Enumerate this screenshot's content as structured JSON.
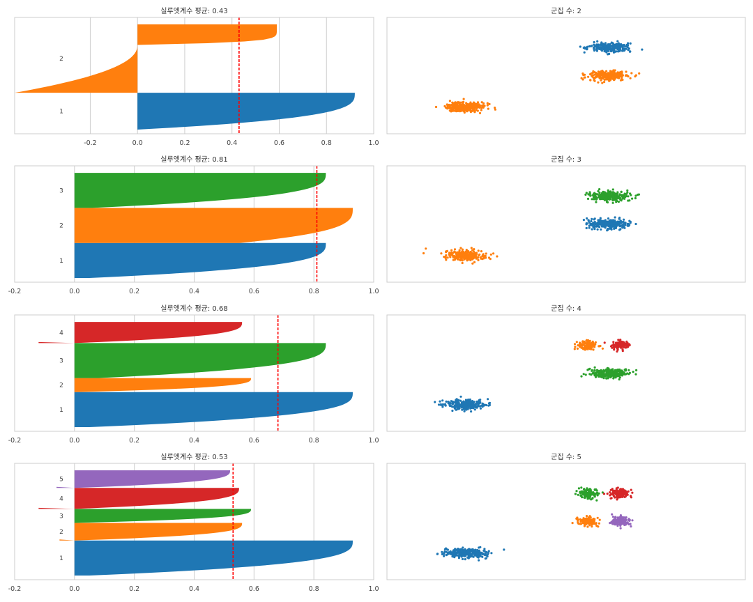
{
  "colors": {
    "cluster": [
      "#1f77b4",
      "#ff7f0e",
      "#2ca02c",
      "#d62728",
      "#9467bd"
    ],
    "mean_line": "#ff0000",
    "grid": "#cccccc",
    "frame": "#cccccc"
  },
  "chart_data": [
    {
      "type": "area",
      "panel": "silhouette",
      "title": "실루엣계수 평균:  0.43",
      "mean": 0.43,
      "xlim": [
        -0.52,
        1.0
      ],
      "xticks": [
        "-0.2",
        "0.0",
        "0.2",
        "0.4",
        "0.6",
        "0.8",
        "1.0"
      ],
      "xtick_values": [
        -0.2,
        0.0,
        0.2,
        0.4,
        0.6,
        0.8,
        1.0
      ],
      "clusters": [
        {
          "label": "1",
          "size": 0.35,
          "max": 0.92,
          "min": 0.0
        },
        {
          "label": "2",
          "size": 0.65,
          "max": 0.59,
          "min": -0.52,
          "neg_share": 0.7
        }
      ]
    },
    {
      "type": "scatter",
      "panel": "clusters",
      "title": "군집 수: 2",
      "groups": [
        {
          "cx": 0.62,
          "cy": 0.26,
          "sx": 0.075,
          "sy": 0.055,
          "color": 0
        },
        {
          "cx": 0.62,
          "cy": 0.5,
          "sx": 0.075,
          "sy": 0.055,
          "color": 1
        },
        {
          "cx": 0.22,
          "cy": 0.77,
          "sx": 0.075,
          "sy": 0.055,
          "color": 1
        }
      ]
    },
    {
      "type": "area",
      "panel": "silhouette",
      "title": "실루엣계수 평균:  0.81",
      "mean": 0.81,
      "xlim": [
        -0.2,
        1.0
      ],
      "xticks": [
        "-0.2",
        "0.0",
        "0.2",
        "0.4",
        "0.6",
        "0.8",
        "1.0"
      ],
      "xtick_values": [
        -0.2,
        0.0,
        0.2,
        0.4,
        0.6,
        0.8,
        1.0
      ],
      "clusters": [
        {
          "label": "1",
          "size": 0.333,
          "max": 0.84,
          "min": 0.05
        },
        {
          "label": "2",
          "size": 0.333,
          "max": 0.93,
          "min": 0.55
        },
        {
          "label": "3",
          "size": 0.333,
          "max": 0.84,
          "min": 0.06
        }
      ]
    },
    {
      "type": "scatter",
      "panel": "clusters",
      "title": "군집 수: 3",
      "groups": [
        {
          "cx": 0.62,
          "cy": 0.26,
          "sx": 0.075,
          "sy": 0.055,
          "color": 2
        },
        {
          "cx": 0.62,
          "cy": 0.5,
          "sx": 0.075,
          "sy": 0.055,
          "color": 0
        },
        {
          "cx": 0.22,
          "cy": 0.77,
          "sx": 0.075,
          "sy": 0.055,
          "color": 1
        }
      ]
    },
    {
      "type": "area",
      "panel": "silhouette",
      "title": "실루엣계수 평균:  0.68",
      "mean": 0.68,
      "xlim": [
        -0.2,
        1.0
      ],
      "xticks": [
        "-0.2",
        "0.0",
        "0.2",
        "0.4",
        "0.6",
        "0.8",
        "1.0"
      ],
      "xtick_values": [
        -0.2,
        0.0,
        0.2,
        0.4,
        0.6,
        0.8,
        1.0
      ],
      "clusters": [
        {
          "label": "1",
          "size": 0.333,
          "max": 0.93,
          "min": 0.05
        },
        {
          "label": "2",
          "size": 0.133,
          "max": 0.59,
          "min": 0.0
        },
        {
          "label": "3",
          "size": 0.333,
          "max": 0.84,
          "min": 0.08
        },
        {
          "label": "4",
          "size": 0.2,
          "max": 0.56,
          "min": -0.12
        }
      ]
    },
    {
      "type": "scatter",
      "panel": "clusters",
      "title": "군집 수: 4",
      "groups": [
        {
          "cx": 0.56,
          "cy": 0.26,
          "sx": 0.035,
          "sy": 0.055,
          "color": 1
        },
        {
          "cx": 0.65,
          "cy": 0.26,
          "sx": 0.035,
          "sy": 0.055,
          "color": 3
        },
        {
          "cx": 0.62,
          "cy": 0.5,
          "sx": 0.075,
          "sy": 0.055,
          "color": 2
        },
        {
          "cx": 0.22,
          "cy": 0.77,
          "sx": 0.075,
          "sy": 0.055,
          "color": 0
        }
      ]
    },
    {
      "type": "area",
      "panel": "silhouette",
      "title": "실루엣계수 평균:  0.53",
      "mean": 0.53,
      "xlim": [
        -0.2,
        1.0
      ],
      "xticks": [
        "-0.2",
        "0.0",
        "0.2",
        "0.4",
        "0.6",
        "0.8",
        "1.0"
      ],
      "xtick_values": [
        -0.2,
        0.0,
        0.2,
        0.4,
        0.6,
        0.8,
        1.0
      ],
      "clusters": [
        {
          "label": "1",
          "size": 0.333,
          "max": 0.93,
          "min": 0.05
        },
        {
          "label": "2",
          "size": 0.167,
          "max": 0.56,
          "min": -0.05
        },
        {
          "label": "3",
          "size": 0.133,
          "max": 0.59,
          "min": 0.0
        },
        {
          "label": "4",
          "size": 0.2,
          "max": 0.55,
          "min": -0.12
        },
        {
          "label": "5",
          "size": 0.167,
          "max": 0.52,
          "min": -0.06
        }
      ]
    },
    {
      "type": "scatter",
      "panel": "clusters",
      "title": "군집 수: 5",
      "groups": [
        {
          "cx": 0.56,
          "cy": 0.26,
          "sx": 0.035,
          "sy": 0.055,
          "color": 2
        },
        {
          "cx": 0.65,
          "cy": 0.26,
          "sx": 0.035,
          "sy": 0.055,
          "color": 3
        },
        {
          "cx": 0.56,
          "cy": 0.5,
          "sx": 0.035,
          "sy": 0.055,
          "color": 1
        },
        {
          "cx": 0.65,
          "cy": 0.5,
          "sx": 0.035,
          "sy": 0.055,
          "color": 4
        },
        {
          "cx": 0.22,
          "cy": 0.77,
          "sx": 0.075,
          "sy": 0.055,
          "color": 0
        }
      ]
    }
  ]
}
